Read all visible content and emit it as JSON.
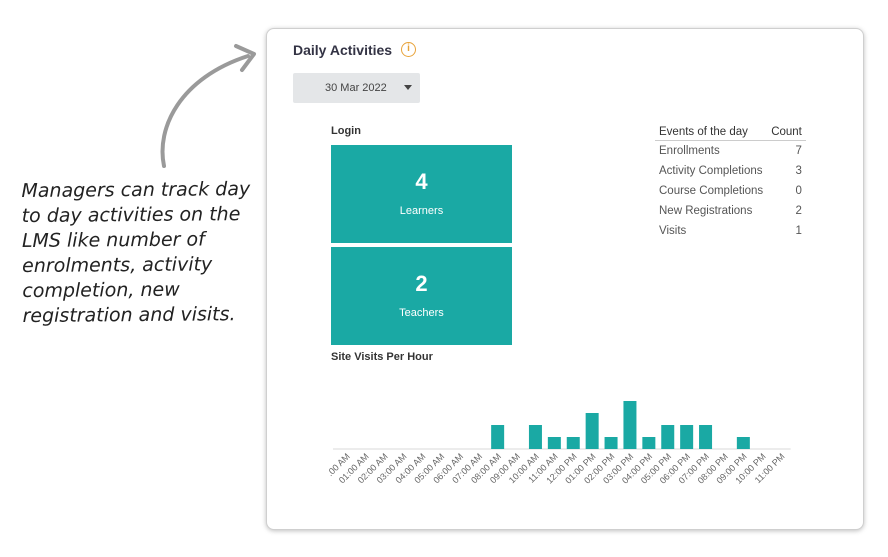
{
  "annotation": {
    "lines": [
      "Managers can track day",
      "to day activities on the",
      "LMS like number of",
      "enrolments, activity",
      "completion, new",
      "registration and visits."
    ]
  },
  "card": {
    "title": "Daily Activities",
    "info_glyph": "i",
    "date_value": "30 Mar 2022"
  },
  "login": {
    "label": "Login",
    "learners_count": "4",
    "learners_label": "Learners",
    "teachers_count": "2",
    "teachers_label": "Teachers"
  },
  "events": {
    "col_event": "Events of the day",
    "col_count": "Count",
    "rows": [
      {
        "name": "Enrollments",
        "count": "7"
      },
      {
        "name": "Activity Completions",
        "count": "3"
      },
      {
        "name": "Course Completions",
        "count": "0"
      },
      {
        "name": "New Registrations",
        "count": "2"
      },
      {
        "name": "Visits",
        "count": "1"
      }
    ]
  },
  "site_visits": {
    "label": "Site Visits Per Hour"
  },
  "colors": {
    "teal": "#1aa9a4",
    "info_orange": "#e8a33a"
  },
  "chart_data": {
    "type": "bar",
    "title": "Site Visits Per Hour",
    "categories": [
      "00:00 AM",
      "01:00 AM",
      "02:00 AM",
      "03:00 AM",
      "04:00 AM",
      "05:00 AM",
      "06:00 AM",
      "07:00 AM",
      "08:00 AM",
      "09:00 AM",
      "10:00 AM",
      "11:00 AM",
      "12:00 PM",
      "01:00 PM",
      "02:00 PM",
      "03:00 PM",
      "04:00 PM",
      "05:00 PM",
      "06:00 PM",
      "07:00 PM",
      "08:00 PM",
      "09:00 PM",
      "10:00 PM",
      "11:00 PM"
    ],
    "category_labels": [
      ".00 AM",
      "01:00 AM",
      "02:00 AM",
      "03:00 AM",
      "04:00 AM",
      "05:00 AM",
      "06:00 AM",
      "07:00 AM",
      "08:00 AM",
      "09:00 AM",
      "10:00 AM",
      "11:00 AM",
      "12:00 PM",
      "01:00 PM",
      "02:00 PM",
      "03:00 PM",
      "04:00 PM",
      "05:00 PM",
      "06:00 PM",
      "07:00 PM",
      "08:00 PM",
      "09:00 PM",
      "10:00 PM",
      "11:00 PM"
    ],
    "values": [
      0,
      0,
      0,
      0,
      0,
      0,
      0,
      0,
      2,
      0,
      2,
      1,
      1,
      3,
      1,
      4,
      1,
      2,
      2,
      2,
      0,
      1,
      0,
      0
    ],
    "ylim": [
      0,
      4
    ],
    "grid": false,
    "legend": "none"
  }
}
